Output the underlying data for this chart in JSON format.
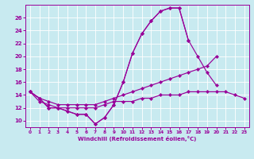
{
  "x": [
    0,
    1,
    2,
    3,
    4,
    5,
    6,
    7,
    8,
    9,
    10,
    11,
    12,
    13,
    14,
    15,
    16,
    17,
    18,
    19,
    20,
    21,
    22,
    23
  ],
  "line1_y": [
    14.5,
    13.5,
    12.0,
    12.0,
    11.5,
    11.0,
    11.0,
    9.5,
    10.5,
    12.5,
    16.0,
    20.5,
    23.5,
    25.5,
    27.0,
    27.5,
    27.5,
    22.5,
    null,
    null,
    null,
    null,
    null,
    null
  ],
  "line2_y": [
    14.5,
    13.5,
    12.0,
    12.0,
    11.5,
    11.0,
    11.0,
    9.5,
    10.5,
    12.5,
    16.0,
    20.5,
    23.5,
    25.5,
    27.0,
    27.5,
    27.5,
    22.5,
    20.0,
    17.5,
    15.5,
    null,
    null,
    null
  ],
  "line3_y": [
    14.5,
    13.5,
    13.0,
    12.5,
    12.5,
    12.5,
    12.5,
    12.5,
    13.0,
    13.5,
    14.0,
    14.5,
    15.0,
    15.5,
    16.0,
    16.5,
    17.0,
    17.5,
    18.0,
    18.5,
    20.0,
    null,
    null,
    null
  ],
  "line4_y": [
    14.5,
    13.0,
    12.5,
    12.0,
    12.0,
    12.0,
    12.0,
    12.0,
    12.5,
    13.0,
    13.0,
    13.0,
    13.5,
    13.5,
    14.0,
    14.0,
    14.0,
    14.5,
    14.5,
    14.5,
    14.5,
    14.5,
    14.0,
    13.5
  ],
  "line_color": "#990099",
  "bg_color": "#c8eaf0",
  "grid_color": "#b0d8e0",
  "xlabel": "Windchill (Refroidissement éolien,°C)",
  "ylim": [
    9,
    28
  ],
  "xlim": [
    -0.5,
    23.5
  ],
  "yticks": [
    10,
    12,
    14,
    16,
    18,
    20,
    22,
    24,
    26
  ],
  "xticks": [
    0,
    1,
    2,
    3,
    4,
    5,
    6,
    7,
    8,
    9,
    10,
    11,
    12,
    13,
    14,
    15,
    16,
    17,
    18,
    19,
    20,
    21,
    22,
    23
  ]
}
